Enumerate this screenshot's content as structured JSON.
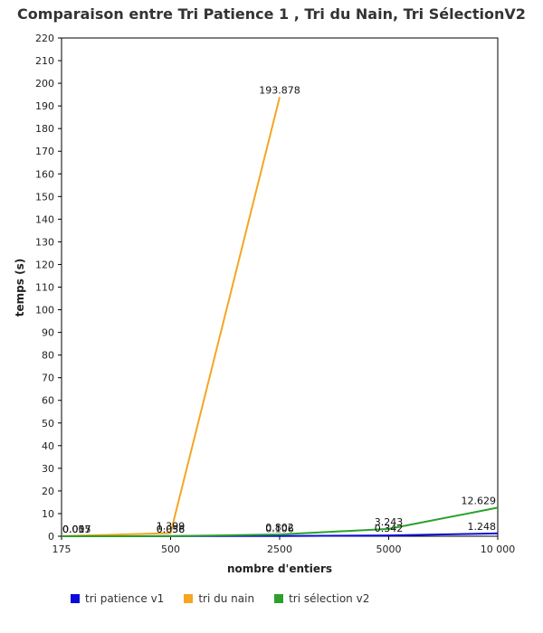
{
  "chart_data": {
    "type": "line",
    "title": "Comparaison entre Tri Patience 1 , Tri du Nain, Tri SélectionV2",
    "xlabel": "nombre d'entiers",
    "ylabel": "temps (s)",
    "categories": [
      "175",
      "500",
      "2500",
      "5000",
      "10 000"
    ],
    "ylim": [
      0,
      220
    ],
    "yticks": [
      0,
      10,
      20,
      30,
      40,
      50,
      60,
      70,
      80,
      90,
      100,
      110,
      120,
      130,
      140,
      150,
      160,
      170,
      180,
      190,
      200,
      210,
      220
    ],
    "grid": false,
    "legend_position": "bottom",
    "series": [
      {
        "name": "tri patience v1",
        "color": "#0b0bd9",
        "values": [
          0.005,
          0.036,
          0.106,
          0.342,
          1.248
        ],
        "labels": [
          "0.005",
          "0.036",
          "0.106",
          "0.342",
          "1.248"
        ]
      },
      {
        "name": "tri du nain",
        "color": "#f5a623",
        "values": [
          0.057,
          1.399,
          193.878,
          null,
          null
        ],
        "labels": [
          "0.057",
          "1.399",
          "193.878",
          "",
          ""
        ]
      },
      {
        "name": "tri sélection v2",
        "color": "#2ca02c",
        "values": [
          0.017,
          0.058,
          0.802,
          3.243,
          12.629
        ],
        "labels": [
          "0.017",
          "0.058",
          "0.802",
          "3.243",
          "12.629"
        ]
      }
    ]
  }
}
